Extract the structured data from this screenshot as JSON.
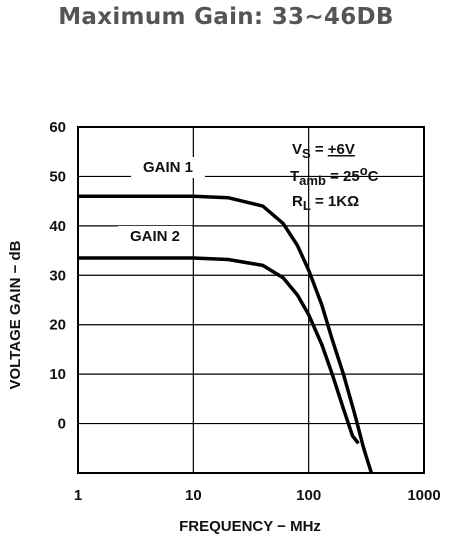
{
  "page_title": "Maximum Gain: 33~46DB",
  "chart_data": {
    "type": "line",
    "title": "",
    "xlabel": "FREQUENCY − MHz",
    "ylabel": "VOLTAGE GAIN − dB",
    "x_scale": "log",
    "xlim": [
      1,
      1000
    ],
    "ylim": [
      -10,
      60
    ],
    "x_ticks": [
      "1",
      "10",
      "100",
      "1000"
    ],
    "y_ticks": [
      "60",
      "50",
      "40",
      "30",
      "20",
      "10",
      "0"
    ],
    "grid": true,
    "series": [
      {
        "name": "GAIN 1",
        "x": [
          1,
          5,
          10,
          20,
          40,
          60,
          80,
          100,
          130,
          160,
          200,
          250,
          300,
          350
        ],
        "y": [
          46,
          46,
          46,
          45.7,
          44,
          40.5,
          36,
          31,
          24,
          17,
          10,
          2,
          -5,
          -10
        ]
      },
      {
        "name": "GAIN 2",
        "x": [
          1,
          5,
          10,
          20,
          40,
          60,
          80,
          100,
          130,
          160,
          200,
          240,
          270
        ],
        "y": [
          33.5,
          33.5,
          33.5,
          33.2,
          32,
          29.5,
          26,
          22,
          16,
          10,
          3,
          -2.5,
          -4
        ]
      }
    ],
    "conditions": {
      "vs": {
        "main": "V",
        "sub": "S",
        "rest": " = ",
        "value": "+6V"
      },
      "tamb": {
        "main": "T",
        "sub": "amb",
        "rest": " = 25",
        "sup": "o",
        "end": "C"
      },
      "rl": {
        "main": "R",
        "sub": "L",
        "rest": " = 1KΩ"
      }
    },
    "line_color": "#000000",
    "grid_color": "#000000"
  }
}
